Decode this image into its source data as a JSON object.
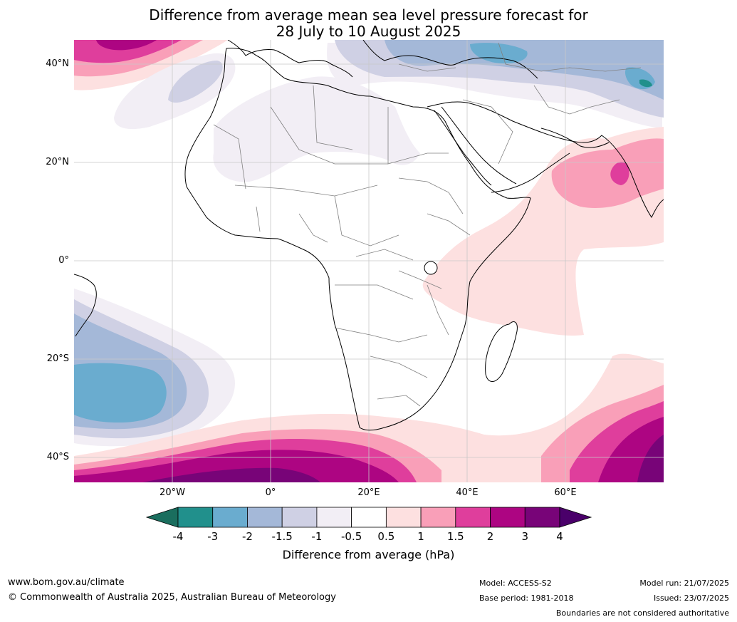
{
  "title": {
    "line1": "Difference from average mean sea level pressure forecast for",
    "line2": "28 July to 10 August 2025"
  },
  "axes": {
    "lat_labels": [
      "40°N",
      "20°N",
      "0°",
      "20°S",
      "40°S"
    ],
    "lon_labels": [
      "20°W",
      "0°",
      "20°E",
      "40°E",
      "60°E"
    ],
    "lat_values": [
      40,
      20,
      0,
      -20,
      -40
    ],
    "lon_values": [
      -20,
      0,
      20,
      40,
      60
    ],
    "extent": {
      "lon_min": -40,
      "lon_max": 80,
      "lat_min": -45,
      "lat_max": 45
    }
  },
  "colorbar": {
    "ticks": [
      "-4",
      "-3",
      "-2",
      "-1.5",
      "-1",
      "-0.5",
      "0.5",
      "1",
      "1.5",
      "2",
      "3",
      "4"
    ],
    "colors": [
      "#1a6e5e",
      "#21908c",
      "#6aaccf",
      "#a4b8d8",
      "#cfd0e4",
      "#f2eef5",
      "#ffffff",
      "#fde0e0",
      "#f99fb8",
      "#df3e9c",
      "#ad0582",
      "#780478",
      "#4a006a"
    ],
    "label": "Difference from average (hPa)"
  },
  "footer": {
    "website": "www.bom.gov.au/climate",
    "copyright": "© Commonwealth of Australia 2025, Australian Bureau of Meteorology",
    "model": "Model: ACCESS-S2",
    "base_period": "Base period: 1981-2018",
    "model_run": "Model run: 21/07/2025",
    "issued": "Issued: 23/07/2025",
    "disclaimer": "Boundaries are not considered authoritative"
  }
}
